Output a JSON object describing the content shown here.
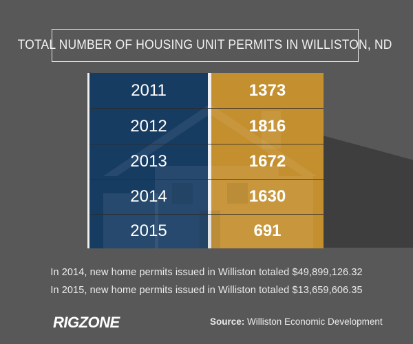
{
  "header": {
    "title": "TOTAL NUMBER OF HOUSING UNIT PERMITS IN WILLISTON, ND"
  },
  "chart_data": {
    "type": "table",
    "title": "TOTAL NUMBER OF HOUSING UNIT PERMITS IN WILLISTON, ND",
    "categories": [
      "2011",
      "2012",
      "2013",
      "2014",
      "2015"
    ],
    "values": [
      1373,
      1816,
      1672,
      1630,
      691
    ],
    "rows": [
      {
        "year": "2011",
        "value": "1373"
      },
      {
        "year": "2012",
        "value": "1816"
      },
      {
        "year": "2013",
        "value": "1672"
      },
      {
        "year": "2014",
        "value": "1630"
      },
      {
        "year": "2015",
        "value": "691"
      }
    ]
  },
  "notes": [
    "In 2014, new home permits issued in Williston totaled $49,899,126.32",
    "In 2015, new home permits issued in Williston totaled $13,659,606.35"
  ],
  "footer": {
    "logo_text": "RIGZONE",
    "source_label": "Source:",
    "source_text": "Williston Economic Development"
  },
  "colors": {
    "background": "#585858",
    "year_column": "#173c62",
    "value_column": "#c48f2e",
    "text": "#ffffff"
  },
  "icons": {
    "watermark": "house-icon"
  }
}
